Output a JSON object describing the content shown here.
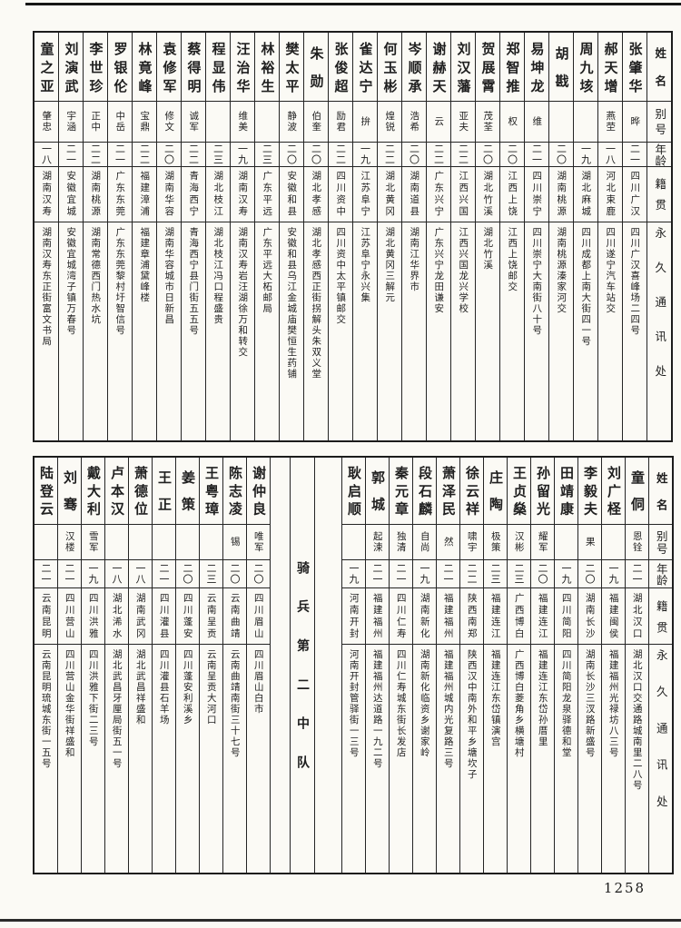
{
  "page": {
    "number": "1258",
    "paper_color": "#fbfaf5",
    "ink_color": "#1f1f1f"
  },
  "headers": {
    "name": "姓名",
    "alias": "别号",
    "age": "年龄",
    "origin": "籍贯",
    "address": "永久通讯处"
  },
  "tables": [
    {
      "id": "upper",
      "entries": [
        {
          "name": "张肇华",
          "alias": "晔",
          "age": "二一",
          "origin": "四川广汉",
          "address": "四川广汉喜峰场二四号"
        },
        {
          "name": "郝天增",
          "alias": "燕茔",
          "age": "一八",
          "origin": "河北束鹿",
          "address": "四川遂宁汽车站交"
        },
        {
          "name": "周九垓",
          "alias": "",
          "age": "一九",
          "origin": "湖北麻城",
          "address": "四川成都上南大街四一号"
        },
        {
          "name": "胡戡",
          "alias": "",
          "age": "二〇",
          "origin": "湖南桃源",
          "address": "湖南桃源溱家河交"
        },
        {
          "name": "易坤龙",
          "alias": "维",
          "age": "二一",
          "origin": "四川崇宁",
          "address": "四川崇宁大南街八十号"
        },
        {
          "name": "郑智推",
          "alias": "权",
          "age": "二〇",
          "origin": "江西上饶",
          "address": "江西上饶邮交"
        },
        {
          "name": "贺展霄",
          "alias": "茂荃",
          "age": "二〇",
          "origin": "湖北竹溪",
          "address": "湖北竹溪"
        },
        {
          "name": "刘汉藩",
          "alias": "亚夫",
          "age": "二二",
          "origin": "江西兴国",
          "address": "江西兴国龙兴学校"
        },
        {
          "name": "谢赫天",
          "alias": "云",
          "age": "二二",
          "origin": "广东兴宁",
          "address": "广东兴宁龙田谦安"
        },
        {
          "name": "岑顺承",
          "alias": "浩希",
          "age": "二〇",
          "origin": "湖南道县",
          "address": "湖南江华界市"
        },
        {
          "name": "何玉彬",
          "alias": "煌锐",
          "age": "二二",
          "origin": "湖北黄冈",
          "address": "湖北黄冈三解元"
        },
        {
          "name": "雀达宁",
          "alias": "拚",
          "age": "一九",
          "origin": "江苏阜宁",
          "address": "江苏阜宁永兴集"
        },
        {
          "name": "张俊超",
          "alias": "励君",
          "age": "二二",
          "origin": "四川资中",
          "address": "四川资中太平镇邮交"
        },
        {
          "name": "朱勋",
          "alias": "伯奎",
          "age": "二〇",
          "origin": "湖北孝感",
          "address": "湖北孝感西正街拐解头朱双义堂"
        },
        {
          "name": "樊太平",
          "alias": "静波",
          "age": "二〇",
          "origin": "安徽和县",
          "address": "安徽和县乌江金城庙樊恒生药铺"
        },
        {
          "name": "林裕生",
          "alias": "",
          "age": "二三",
          "origin": "广东平远",
          "address": "广东平远大柘邮局"
        },
        {
          "name": "汪治华",
          "alias": "维美",
          "age": "一九",
          "origin": "湖南汉寿",
          "address": "湖南汉寿岩汪湖徐万和转交"
        },
        {
          "name": "程显伟",
          "alias": "",
          "age": "二三",
          "origin": "湖北枝江",
          "address": "湖北枝江冯口程盛贵"
        },
        {
          "name": "蔡得明",
          "alias": "诚军",
          "age": "二二",
          "origin": "青海西宁",
          "address": "青海西宁县门街五五号"
        },
        {
          "name": "袁修军",
          "alias": "修文",
          "age": "二〇",
          "origin": "湖南华容",
          "address": "湖南华容城市日新昌"
        },
        {
          "name": "林竟峰",
          "alias": "宝鼎",
          "age": "二二",
          "origin": "福建漳浦",
          "address": "福建章浦黛峰楼"
        },
        {
          "name": "罗银伦",
          "alias": "中岳",
          "age": "二一",
          "origin": "广东东莞",
          "address": "广东东莞黎村圩智信号"
        },
        {
          "name": "李世珍",
          "alias": "正中",
          "age": "二二",
          "origin": "湖南桃源",
          "address": "湖南常德西门热水坑"
        },
        {
          "name": "刘演武",
          "alias": "宇涵",
          "age": "二一",
          "origin": "安徽宜城",
          "address": "安徽宜城湾子镇万春号"
        },
        {
          "name": "童之亚",
          "alias": "肇忠",
          "age": "一八",
          "origin": "湖南汉寿",
          "address": "湖南汉寿东正街富文书局"
        }
      ]
    },
    {
      "id": "lower",
      "entries": [
        {
          "name": "童侗",
          "alias": "恩铨",
          "age": "二一",
          "origin": "湖北汉口",
          "address": "湖北汉口交通路城南里二八号"
        },
        {
          "name": "刘广柽",
          "alias": "",
          "age": "一九",
          "origin": "福建闽侯",
          "address": "福建福州光禄坊八三号"
        },
        {
          "name": "李毅夫",
          "alias": "果",
          "age": "二〇",
          "origin": "湖南长沙",
          "address": "湖南长沙三汊路新盛号"
        },
        {
          "name": "田靖康",
          "alias": "",
          "age": "一九",
          "origin": "四川简阳",
          "address": "四川简阳龙泉驿德和堂"
        },
        {
          "name": "孙留光",
          "alias": "耀军",
          "age": "二〇",
          "origin": "福建连江",
          "address": "福建连江东岱孙厝里"
        },
        {
          "name": "王贞燊",
          "alias": "汉彬",
          "age": "二三",
          "origin": "广西博白",
          "address": "广西博白菱角乡横塘村"
        },
        {
          "name": "庄陶",
          "alias": "极策",
          "age": "二三",
          "origin": "福建连江",
          "address": "福建连江东岱镇演宫"
        },
        {
          "name": "徐云祥",
          "alias": "啸宇",
          "age": "二二",
          "origin": "陕西南郑",
          "address": "陕西汉中南外和平乡塘坎子"
        },
        {
          "name": "萧泽民",
          "alias": "然",
          "age": "二一",
          "origin": "福建福州",
          "address": "福建福州城内光复路三号"
        },
        {
          "name": "段石麟",
          "alias": "自尚",
          "age": "一九",
          "origin": "湖南新化",
          "address": "湖南新化临资乡谢家岭"
        },
        {
          "name": "秦元章",
          "alias": "独清",
          "age": "二一",
          "origin": "四川仁寿",
          "address": "四川仁寿城东街长发店"
        },
        {
          "name": "郭城",
          "alias": "起涑",
          "age": "二一",
          "origin": "福建福州",
          "address": "福建福州达道路一九二号"
        },
        {
          "name": "耿启顺",
          "alias": "",
          "age": "一九",
          "origin": "河南开封",
          "address": "河南开封管驿街一三号"
        },
        {
          "type": "spacer",
          "width": 29
        },
        {
          "type": "divider",
          "label": "骑兵第二中队"
        },
        {
          "type": "spacer",
          "width": 21
        },
        {
          "name": "谢仲良",
          "alias": "唯军",
          "age": "二〇",
          "origin": "四川眉山",
          "address": "四川眉山白市"
        },
        {
          "name": "陈志凌",
          "alias": "锡",
          "age": "二〇",
          "origin": "云南曲靖",
          "address": "云南曲靖南街三十七号"
        },
        {
          "name": "王粤璋",
          "alias": "",
          "age": "二三",
          "origin": "云南呈贡",
          "address": "云南呈贡大河口"
        },
        {
          "name": "姜策",
          "alias": "",
          "age": "二〇",
          "origin": "四川蓬安",
          "address": "四川蓬安利溪乡"
        },
        {
          "name": "王正",
          "alias": "",
          "age": "二一",
          "origin": "四川灌县",
          "address": "四川灌县石羊场"
        },
        {
          "name": "萧德位",
          "alias": "",
          "age": "一八",
          "origin": "湖南武冈",
          "address": "湖北武昌祥盛和"
        },
        {
          "name": "卢本汉",
          "alias": "",
          "age": "一八",
          "origin": "湖北浠水",
          "address": "湖北武昌牙厘局街五一号"
        },
        {
          "name": "戴大利",
          "alias": "雪军",
          "age": "一九",
          "origin": "四川洪雅",
          "address": "四川洪雅下街二三号"
        },
        {
          "name": "刘骞",
          "alias": "汉楼",
          "age": "二一",
          "origin": "四川营山",
          "address": "四川营山金华街祥盛和"
        },
        {
          "name": "陆登云",
          "alias": "",
          "age": "二一",
          "origin": "云南昆明",
          "address": "云南昆明琉城东街一五号"
        }
      ]
    }
  ]
}
